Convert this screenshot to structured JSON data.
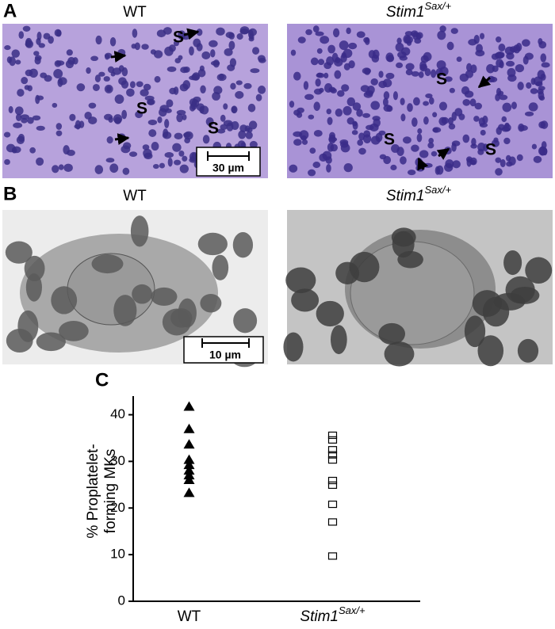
{
  "panel_a": {
    "label": "A",
    "titles": [
      "WT",
      {
        "base": "Stim1",
        "sup": "Sax/+"
      }
    ],
    "left_marks": [
      "S",
      "S",
      "S"
    ],
    "right_marks": [
      "S",
      "S",
      "S"
    ],
    "scale_bar": "30 µm"
  },
  "panel_b": {
    "label": "B",
    "titles": [
      "WT",
      {
        "base": "Stim1",
        "sup": "Sax/+"
      }
    ],
    "scale_bar": "10 µm"
  },
  "chart_data": {
    "type": "strip",
    "label": "C",
    "y_label": [
      "% Proplatelet-",
      "forming MKs"
    ],
    "categories": [
      "WT",
      {
        "base": "Stim1",
        "sup": "Sax/+"
      }
    ],
    "markers": [
      "triangle",
      "square"
    ],
    "color": "#000000",
    "values": [
      [
        41.7,
        36.9,
        33.6,
        30.3,
        29.2,
        28,
        27,
        26,
        23.2
      ],
      [
        35.6,
        34.6,
        32.5,
        31.4,
        30.3,
        25.9,
        24.9,
        20.8,
        17,
        9.7
      ]
    ],
    "ylim": [
      0,
      44
    ],
    "yticks": [
      0,
      10,
      20,
      30,
      40
    ]
  }
}
